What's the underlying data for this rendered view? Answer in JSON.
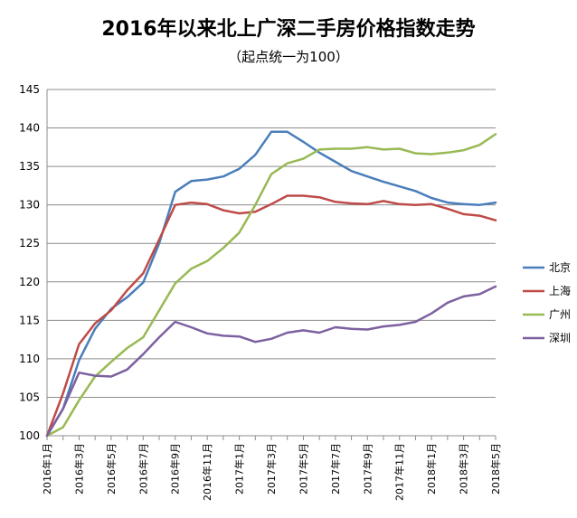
{
  "chart_data": {
    "type": "line",
    "title": "2016年以来北上广深二手房价格指数走势",
    "subtitle": "（起点统一为100）",
    "xlabel": "",
    "ylabel": "",
    "ylim": [
      100,
      145
    ],
    "yticks": [
      100,
      105,
      110,
      115,
      120,
      125,
      130,
      135,
      140,
      145
    ],
    "grid": "horizontal",
    "legend": "right",
    "x": [
      "2016年1月",
      "2016年2月",
      "2016年3月",
      "2016年4月",
      "2016年5月",
      "2016年6月",
      "2016年7月",
      "2016年8月",
      "2016年9月",
      "2016年10月",
      "2016年11月",
      "2016年12月",
      "2017年1月",
      "2017年2月",
      "2017年3月",
      "2017年4月",
      "2017年5月",
      "2017年6月",
      "2017年7月",
      "2017年8月",
      "2017年9月",
      "2017年10月",
      "2017年11月",
      "2017年12月",
      "2018年1月",
      "2018年2月",
      "2018年3月",
      "2018年4月",
      "2018年5月"
    ],
    "xtick_labels": [
      "2016年1月",
      "2016年3月",
      "2016年5月",
      "2016年7月",
      "2016年9月",
      "2016年11月",
      "2017年1月",
      "2017年3月",
      "2017年5月",
      "2017年7月",
      "2017年9月",
      "2017年11月",
      "2018年1月",
      "2018年3月",
      "2018年5月"
    ],
    "series": [
      {
        "name": "北京",
        "color": "#4a7ebb",
        "values": [
          100,
          103.5,
          109.8,
          113.9,
          116.5,
          118.0,
          119.9,
          125.0,
          131.7,
          133.1,
          133.3,
          133.7,
          134.7,
          136.5,
          139.5,
          139.5,
          138.2,
          136.8,
          135.6,
          134.4,
          133.7,
          133.0,
          132.4,
          131.8,
          130.9,
          130.3,
          130.1,
          130.0,
          130.3
        ]
      },
      {
        "name": "上海",
        "color": "#be4b48",
        "values": [
          100,
          105.5,
          111.9,
          114.6,
          116.3,
          118.9,
          121.1,
          125.5,
          130.0,
          130.3,
          130.1,
          129.3,
          128.9,
          129.1,
          130.1,
          131.2,
          131.2,
          131.0,
          130.4,
          130.2,
          130.1,
          130.5,
          130.1,
          130.0,
          130.1,
          129.5,
          128.8,
          128.6,
          128.0
        ]
      },
      {
        "name": "广州",
        "color": "#98b954",
        "values": [
          100,
          101.1,
          104.6,
          107.7,
          109.6,
          111.4,
          112.8,
          116.3,
          119.8,
          121.7,
          122.7,
          124.4,
          126.4,
          130.0,
          134.0,
          135.4,
          136.0,
          137.2,
          137.3,
          137.3,
          137.5,
          137.2,
          137.3,
          136.7,
          136.6,
          136.8,
          137.1,
          137.8,
          139.2
        ]
      },
      {
        "name": "深圳",
        "color": "#7d60a0",
        "values": [
          100,
          103.5,
          108.2,
          107.8,
          107.7,
          108.6,
          110.6,
          112.8,
          114.8,
          114.1,
          113.3,
          113.0,
          112.9,
          112.2,
          112.6,
          113.4,
          113.7,
          113.4,
          114.1,
          113.9,
          113.8,
          114.2,
          114.4,
          114.8,
          115.9,
          117.3,
          118.1,
          118.4,
          119.4
        ]
      }
    ]
  }
}
